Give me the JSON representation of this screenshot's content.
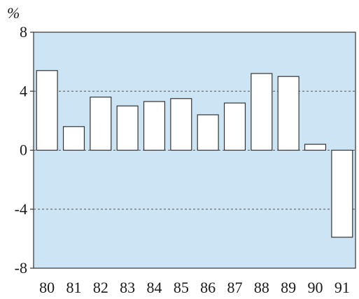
{
  "chart_data": {
    "type": "bar",
    "title": "",
    "xlabel": "",
    "ylabel": "%",
    "ylim": [
      -8,
      8
    ],
    "yticks": [
      8,
      4,
      0,
      -4,
      -8
    ],
    "categories": [
      "80",
      "81",
      "82",
      "83",
      "84",
      "85",
      "86",
      "87",
      "88",
      "89",
      "90",
      "91"
    ],
    "values": [
      5.4,
      1.6,
      3.6,
      3.0,
      3.3,
      3.5,
      2.4,
      3.2,
      5.2,
      5.0,
      0.4,
      -5.9
    ],
    "gridlines": [
      4,
      0,
      -4
    ],
    "colors": {
      "plot_background": "#cde4f4",
      "bar_fill": "#ffffff",
      "bar_stroke": "#333333",
      "gridline": "#555555",
      "axis": "#333333"
    }
  }
}
